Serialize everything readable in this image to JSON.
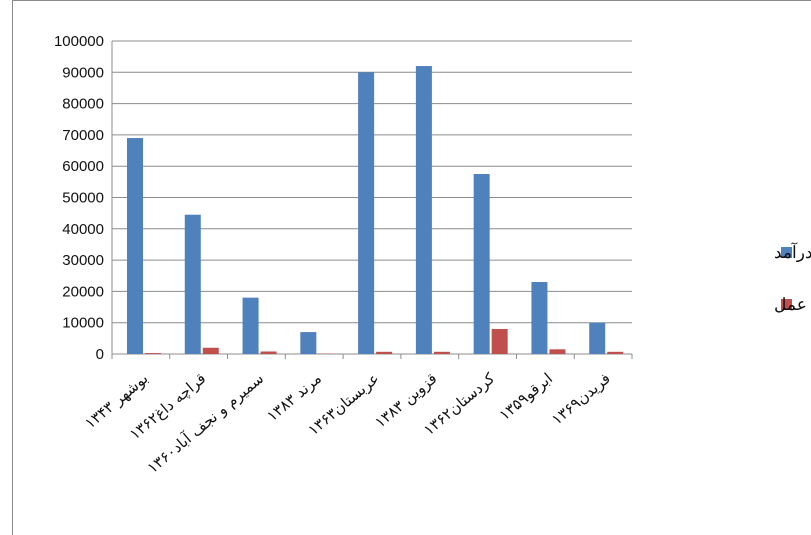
{
  "chart_data": {
    "type": "bar",
    "categories": [
      "بوشهر ۱۳۴۳",
      "قراچه داغ۱۳۶۲",
      "سمیرم و نجف آباد۱۳۶۰",
      "مرند ۱۳۸۳",
      "عربستان۱۳۶۳",
      "قزوین ۱۳۸۳",
      "کردستان۱۳۶۲",
      "ابرقو۱۳۵۹",
      "فریدن۱۳۶۹"
    ],
    "series": [
      {
        "name": "کل درآمد",
        "color": "#4f81bd",
        "values": [
          69000,
          44500,
          18000,
          7000,
          90000,
          92000,
          57500,
          23000,
          10000
        ]
      },
      {
        "name": "تفاوت عمل",
        "color": "#c0504d",
        "values": [
          300,
          2000,
          800,
          100,
          700,
          700,
          8000,
          1500,
          700
        ]
      }
    ],
    "ylim": [
      0,
      100000
    ],
    "yticks": [
      0,
      10000,
      20000,
      30000,
      40000,
      50000,
      60000,
      70000,
      80000,
      90000,
      100000
    ],
    "grid": true,
    "legend": "right",
    "title": "",
    "xlabel": "",
    "ylabel": ""
  }
}
